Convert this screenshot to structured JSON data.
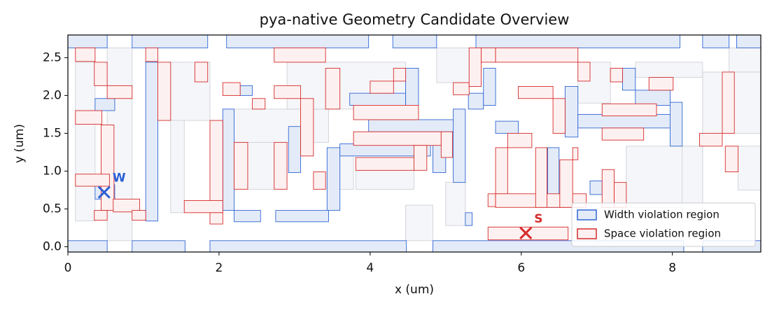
{
  "chart_data": {
    "type": "rects",
    "title": "pya-native Geometry Candidate Overview",
    "x_label": "x (um)",
    "y_label": "y (um)",
    "xlim": [
      0,
      9.17
    ],
    "ylim": [
      -0.07,
      2.8
    ],
    "xticks": [
      0,
      2,
      4,
      6,
      8
    ],
    "yticks": [
      {
        "value": 0,
        "label": "0.0"
      },
      0.5,
      {
        "value": 1,
        "label": "1.0"
      },
      1.5,
      {
        "value": 2,
        "label": "2.0"
      },
      2.5
    ],
    "legend": "lower right",
    "background": {
      "color": "#f5f6f9",
      "edge": "#c9ccd3",
      "rects": [
        [
          0.52,
          0.08,
          0.85,
          2.63
        ],
        [
          0.1,
          0.34,
          0.36,
          2.44
        ],
        [
          1.36,
          0.45,
          1.54,
          2.44
        ],
        [
          1.36,
          1.67,
          1.88,
          2.44
        ],
        [
          2.2,
          1.38,
          3.45,
          1.82
        ],
        [
          2.38,
          0.76,
          2.73,
          1.38
        ],
        [
          2.9,
          1.82,
          4.47,
          2.44
        ],
        [
          3.6,
          0.76,
          3.78,
          1.2
        ],
        [
          3.81,
          0.76,
          4.58,
          1.01
        ],
        [
          4.47,
          0.08,
          4.83,
          0.55
        ],
        [
          4.88,
          2.17,
          5.31,
          2.63
        ],
        [
          5.0,
          0.28,
          5.26,
          0.85
        ],
        [
          6.75,
          1.9,
          7.18,
          2.44
        ],
        [
          7.39,
          0.52,
          8.4,
          1.33
        ],
        [
          8.13,
          0.34,
          8.4,
          1.33
        ],
        [
          8.4,
          1.5,
          9.17,
          2.31
        ],
        [
          8.87,
          0.75,
          9.17,
          1.33
        ],
        [
          7.51,
          2.24,
          8.4,
          2.44
        ],
        [
          8.75,
          2.31,
          9.17,
          2.63
        ]
      ]
    },
    "series": [
      {
        "name": "Width violation region",
        "color": "#2f66d4",
        "fill": "#e4ebf8",
        "rects": [
          [
            0,
            2.63,
            0.52,
            2.8
          ],
          [
            0.85,
            2.63,
            1.85,
            2.8
          ],
          [
            2.1,
            2.63,
            3.98,
            2.8
          ],
          [
            4.3,
            2.63,
            4.88,
            2.8
          ],
          [
            5.4,
            2.63,
            8.1,
            2.8
          ],
          [
            8.4,
            2.63,
            8.75,
            2.8
          ],
          [
            8.85,
            2.63,
            9.17,
            2.8
          ],
          [
            0,
            -0.07,
            0.52,
            0.08
          ],
          [
            0.85,
            -0.07,
            1.55,
            0.08
          ],
          [
            1.88,
            -0.07,
            4.48,
            0.08
          ],
          [
            4.83,
            -0.07,
            8.15,
            0.08
          ],
          [
            8.4,
            -0.07,
            9.17,
            0.08
          ],
          [
            1.03,
            0.34,
            1.19,
            2.44
          ],
          [
            0.36,
            1.8,
            0.62,
            1.96
          ],
          [
            0.36,
            0.63,
            0.62,
            0.82
          ],
          [
            2.05,
            0.48,
            2.2,
            1.82
          ],
          [
            2.2,
            0.33,
            2.55,
            0.48
          ],
          [
            2.75,
            0.33,
            3.45,
            0.48
          ],
          [
            2.92,
            0.98,
            3.08,
            1.59
          ],
          [
            3.43,
            0.48,
            3.6,
            1.31
          ],
          [
            3.6,
            1.2,
            4.8,
            1.36
          ],
          [
            3.98,
            1.52,
            5.2,
            1.68
          ],
          [
            3.73,
            1.87,
            4.47,
            2.03
          ],
          [
            4.47,
            1.87,
            4.64,
            2.36
          ],
          [
            4.83,
            0.98,
            5.0,
            1.36
          ],
          [
            5.1,
            0.85,
            5.26,
            1.82
          ],
          [
            5.3,
            1.82,
            5.5,
            2.03
          ],
          [
            5.5,
            1.87,
            5.66,
            2.36
          ],
          [
            5.66,
            1.5,
            5.96,
            1.66
          ],
          [
            6.35,
            0.52,
            6.5,
            1.31
          ],
          [
            6.58,
            1.45,
            6.75,
            2.12
          ],
          [
            6.75,
            1.57,
            8.1,
            1.75
          ],
          [
            7.34,
            2.07,
            7.51,
            2.36
          ],
          [
            7.51,
            1.87,
            7.97,
            2.07
          ],
          [
            7.97,
            1.33,
            8.13,
            1.91
          ],
          [
            6.91,
            0.69,
            7.07,
            0.87
          ],
          [
            5.26,
            0.28,
            5.35,
            0.45
          ],
          [
            2.28,
            2.0,
            2.44,
            2.13
          ]
        ]
      },
      {
        "name": "Space violation region",
        "color": "#d62b2b",
        "fill": "#fdf0f0",
        "rects": [
          [
            0.1,
            2.45,
            0.36,
            2.63
          ],
          [
            0.35,
            2.13,
            0.52,
            2.44
          ],
          [
            0.52,
            1.96,
            0.85,
            2.13
          ],
          [
            0.1,
            1.62,
            0.45,
            1.8
          ],
          [
            0.44,
            0.48,
            0.61,
            1.61
          ],
          [
            0.1,
            0.8,
            0.55,
            0.96
          ],
          [
            0.6,
            0.46,
            0.95,
            0.63
          ],
          [
            0.35,
            0.35,
            0.52,
            0.48
          ],
          [
            0.85,
            0.35,
            1.03,
            0.48
          ],
          [
            1.03,
            2.45,
            1.19,
            2.63
          ],
          [
            1.19,
            1.67,
            1.36,
            2.44
          ],
          [
            1.68,
            2.18,
            1.85,
            2.44
          ],
          [
            1.54,
            0.45,
            2.05,
            0.61
          ],
          [
            1.88,
            0.3,
            2.05,
            0.45
          ],
          [
            1.88,
            0.61,
            2.05,
            1.67
          ],
          [
            2.05,
            2.0,
            2.28,
            2.17
          ],
          [
            2.2,
            0.76,
            2.38,
            1.38
          ],
          [
            2.44,
            1.82,
            2.61,
            1.96
          ],
          [
            2.73,
            2.44,
            3.41,
            2.63
          ],
          [
            2.73,
            1.96,
            3.08,
            2.13
          ],
          [
            2.73,
            0.76,
            2.9,
            1.38
          ],
          [
            3.08,
            1.2,
            3.25,
            1.96
          ],
          [
            3.25,
            0.76,
            3.41,
            0.99
          ],
          [
            3.41,
            1.82,
            3.6,
            2.36
          ],
          [
            4.0,
            2.03,
            4.31,
            2.19
          ],
          [
            4.31,
            2.19,
            4.47,
            2.36
          ],
          [
            3.78,
            1.68,
            4.64,
            1.87
          ],
          [
            3.78,
            1.34,
            4.94,
            1.52
          ],
          [
            3.81,
            1.01,
            4.58,
            1.18
          ],
          [
            4.58,
            1.01,
            4.75,
            1.34
          ],
          [
            4.94,
            1.18,
            5.09,
            1.52
          ],
          [
            5.1,
            2.01,
            5.31,
            2.17
          ],
          [
            5.31,
            2.12,
            5.47,
            2.63
          ],
          [
            5.47,
            2.44,
            5.66,
            2.63
          ],
          [
            5.66,
            2.44,
            6.75,
            2.63
          ],
          [
            5.96,
            1.96,
            6.42,
            2.12
          ],
          [
            6.42,
            1.5,
            6.58,
            1.96
          ],
          [
            6.75,
            2.19,
            6.91,
            2.44
          ],
          [
            7.18,
            2.18,
            7.34,
            2.36
          ],
          [
            7.69,
            2.07,
            8.01,
            2.24
          ],
          [
            7.07,
            1.73,
            7.79,
            1.89
          ],
          [
            7.07,
            1.41,
            7.62,
            1.57
          ],
          [
            8.36,
            1.33,
            8.66,
            1.5
          ],
          [
            8.66,
            1.5,
            8.82,
            2.31
          ],
          [
            8.7,
            0.99,
            8.87,
            1.33
          ],
          [
            5.82,
            1.31,
            6.14,
            1.5
          ],
          [
            5.66,
            0.7,
            5.82,
            1.31
          ],
          [
            5.56,
            0.53,
            5.66,
            0.7
          ],
          [
            5.66,
            0.52,
            6.86,
            0.7
          ],
          [
            6.19,
            0.52,
            6.34,
            1.31
          ],
          [
            6.51,
            0.52,
            6.68,
            1.15
          ],
          [
            6.68,
            1.15,
            6.75,
            1.31
          ],
          [
            5.56,
            0.09,
            6.62,
            0.26
          ],
          [
            7.07,
            0.52,
            7.23,
            1.02
          ],
          [
            7.23,
            0.52,
            7.39,
            0.85
          ]
        ]
      }
    ],
    "markers": [
      {
        "label": "W",
        "x": 0.48,
        "y": 0.72,
        "color": "#2a5fd6"
      },
      {
        "label": "S",
        "x": 6.06,
        "y": 0.18,
        "color": "#d62b2b"
      }
    ]
  }
}
